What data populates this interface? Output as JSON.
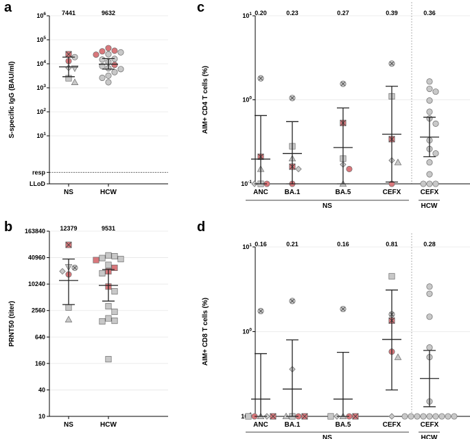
{
  "colors": {
    "gray": "#c8c8c8",
    "pink": "#d9777b",
    "stroke": "#6a6a6a"
  },
  "chart_data": [
    {
      "id": "a",
      "panel_label": "a",
      "type": "scatter",
      "scale": "log",
      "ylabel": "S-specific IgG (BAU/ml)",
      "ylim": [
        0.1,
        1000000
      ],
      "yticks": [
        {
          "value": 1000000,
          "label": "10",
          "exp": "6"
        },
        {
          "value": 100000,
          "label": "10",
          "exp": "5"
        },
        {
          "value": 10000,
          "label": "10",
          "exp": "4"
        },
        {
          "value": 1000,
          "label": "10",
          "exp": "3"
        },
        {
          "value": 100,
          "label": "10",
          "exp": "2"
        },
        {
          "value": 10,
          "label": "10",
          "exp": "1"
        },
        {
          "value": 0.3,
          "label": "resp",
          "exp": ""
        },
        {
          "value": 0.1,
          "label": "LLoD",
          "exp": ""
        }
      ],
      "hline": {
        "value": 0.3
      },
      "categories": [
        "NS",
        "HCW"
      ],
      "summary_labels": [
        "7441",
        "9632"
      ],
      "groups": [
        {
          "category": "NS",
          "center": 7441,
          "lower": 2900,
          "upper": 19000,
          "points": [
            {
              "v": 25000,
              "s": "sqx",
              "c": "pink"
            },
            {
              "v": 19000,
              "s": "circle",
              "c": "gray"
            },
            {
              "v": 13000,
              "s": "circle",
              "c": "pink"
            },
            {
              "v": 6500,
              "s": "tridown",
              "c": "gray"
            },
            {
              "v": 6800,
              "s": "diamond",
              "c": "gray"
            },
            {
              "v": 2500,
              "s": "square",
              "c": "gray"
            },
            {
              "v": 1700,
              "s": "triangle",
              "c": "gray"
            }
          ]
        },
        {
          "category": "HCW",
          "center": 9632,
          "lower": 6000,
          "upper": 16500,
          "points": [
            {
              "v": 45000,
              "s": "circle",
              "c": "pink"
            },
            {
              "v": 35000,
              "s": "circle",
              "c": "pink"
            },
            {
              "v": 33000,
              "s": "circle",
              "c": "pink"
            },
            {
              "v": 30000,
              "s": "circle",
              "c": "gray"
            },
            {
              "v": 25000,
              "s": "circle",
              "c": "gray"
            },
            {
              "v": 24000,
              "s": "circle",
              "c": "pink"
            },
            {
              "v": 16000,
              "s": "circle",
              "c": "gray"
            },
            {
              "v": 15000,
              "s": "circle",
              "c": "gray"
            },
            {
              "v": 12000,
              "s": "circle",
              "c": "gray"
            },
            {
              "v": 9000,
              "s": "circle",
              "c": "pink"
            },
            {
              "v": 8000,
              "s": "circle",
              "c": "gray"
            },
            {
              "v": 6500,
              "s": "circle",
              "c": "gray"
            },
            {
              "v": 6000,
              "s": "circle",
              "c": "gray"
            },
            {
              "v": 4500,
              "s": "circle",
              "c": "gray"
            },
            {
              "v": 3200,
              "s": "circle",
              "c": "gray"
            },
            {
              "v": 2600,
              "s": "circle",
              "c": "gray"
            },
            {
              "v": 1700,
              "s": "circle",
              "c": "gray"
            }
          ]
        }
      ]
    },
    {
      "id": "b",
      "panel_label": "b",
      "type": "scatter",
      "scale": "log",
      "ylabel": "PRNT50 (titer)",
      "ylim": [
        10,
        163840
      ],
      "yticks": [
        {
          "value": 163840,
          "label": "163840"
        },
        {
          "value": 40960,
          "label": "40960"
        },
        {
          "value": 10240,
          "label": "10240"
        },
        {
          "value": 2560,
          "label": "2560"
        },
        {
          "value": 640,
          "label": "640"
        },
        {
          "value": 160,
          "label": "160"
        },
        {
          "value": 40,
          "label": "40"
        },
        {
          "value": 10,
          "label": "10"
        }
      ],
      "categories": [
        "NS",
        "HCW"
      ],
      "summary_labels": [
        "12379",
        "9531"
      ],
      "groups": [
        {
          "category": "NS",
          "center": 12379,
          "lower": 3500,
          "upper": 38000,
          "points": [
            {
              "v": 80000,
              "s": "sqx",
              "c": "pink"
            },
            {
              "v": 25000,
              "s": "tridown",
              "c": "gray"
            },
            {
              "v": 24000,
              "s": "circx",
              "c": "gray"
            },
            {
              "v": 20000,
              "s": "diamond",
              "c": "gray"
            },
            {
              "v": 17000,
              "s": "circle",
              "c": "pink"
            },
            {
              "v": 3000,
              "s": "square",
              "c": "gray"
            },
            {
              "v": 1600,
              "s": "triangle",
              "c": "gray"
            }
          ]
        },
        {
          "category": "HCW",
          "center": 9531,
          "lower": 4200,
          "upper": 22000,
          "points": [
            {
              "v": 46000,
              "s": "square",
              "c": "gray"
            },
            {
              "v": 44000,
              "s": "square",
              "c": "gray"
            },
            {
              "v": 40000,
              "s": "square",
              "c": "gray"
            },
            {
              "v": 38000,
              "s": "square",
              "c": "gray"
            },
            {
              "v": 36000,
              "s": "square",
              "c": "pink"
            },
            {
              "v": 28000,
              "s": "square",
              "c": "gray"
            },
            {
              "v": 24000,
              "s": "square",
              "c": "pink"
            },
            {
              "v": 20000,
              "s": "square",
              "c": "pink"
            },
            {
              "v": 18000,
              "s": "square",
              "c": "gray"
            },
            {
              "v": 9000,
              "s": "square",
              "c": "pink"
            },
            {
              "v": 7000,
              "s": "square",
              "c": "gray"
            },
            {
              "v": 3200,
              "s": "square",
              "c": "gray"
            },
            {
              "v": 2400,
              "s": "square",
              "c": "gray"
            },
            {
              "v": 1700,
              "s": "square",
              "c": "gray"
            },
            {
              "v": 1500,
              "s": "square",
              "c": "gray"
            },
            {
              "v": 1450,
              "s": "square",
              "c": "gray"
            },
            {
              "v": 200,
              "s": "square",
              "c": "gray"
            }
          ]
        }
      ]
    },
    {
      "id": "c",
      "panel_label": "c",
      "type": "scatter",
      "scale": "log",
      "ylabel": "AIM+ CD4 T cells (%)",
      "ylim": [
        0.1,
        10
      ],
      "yticks": [
        {
          "value": 10,
          "label": "10",
          "exp": "1"
        },
        {
          "value": 1,
          "label": "10",
          "exp": "0"
        },
        {
          "value": 0.1,
          "label": "10",
          "exp": "-1"
        }
      ],
      "categories": [
        "ANC",
        "BA.1",
        "BA.5",
        "CEFX",
        "CEFX"
      ],
      "summary_labels": [
        "0.20",
        "0.23",
        "0.27",
        "0.39",
        "0.36"
      ],
      "bracket_labels": [
        "NS",
        "HCW"
      ],
      "groups": [
        {
          "category": "ANC",
          "center": 0.197,
          "lower": 0.1,
          "upper": 0.65,
          "points": [
            {
              "v": 1.8,
              "s": "circx",
              "c": "gray"
            },
            {
              "v": 0.21,
              "s": "sqx",
              "c": "pink"
            },
            {
              "v": 0.15,
              "s": "triangle",
              "c": "gray"
            },
            {
              "v": 0.1,
              "s": "square",
              "c": "gray"
            },
            {
              "v": 0.1,
              "s": "circle",
              "c": "pink"
            },
            {
              "v": 0.1,
              "s": "diamond",
              "c": "gray"
            }
          ]
        },
        {
          "category": "BA.1",
          "center": 0.23,
          "lower": 0.1,
          "upper": 0.55,
          "points": [
            {
              "v": 1.05,
              "s": "circx",
              "c": "gray"
            },
            {
              "v": 0.28,
              "s": "square",
              "c": "gray"
            },
            {
              "v": 0.2,
              "s": "triangle",
              "c": "gray"
            },
            {
              "v": 0.16,
              "s": "sqx",
              "c": "pink"
            },
            {
              "v": 0.15,
              "s": "diamond",
              "c": "gray"
            },
            {
              "v": 0.1,
              "s": "circle",
              "c": "pink"
            }
          ]
        },
        {
          "category": "BA.5",
          "center": 0.27,
          "lower": 0.1,
          "upper": 0.8,
          "points": [
            {
              "v": 1.55,
              "s": "circx",
              "c": "gray"
            },
            {
              "v": 0.53,
              "s": "sqx",
              "c": "pink"
            },
            {
              "v": 0.2,
              "s": "square",
              "c": "gray"
            },
            {
              "v": 0.17,
              "s": "diamond",
              "c": "gray"
            },
            {
              "v": 0.15,
              "s": "circle",
              "c": "pink"
            },
            {
              "v": 0.1,
              "s": "triangle",
              "c": "gray"
            }
          ]
        },
        {
          "category": "CEFX",
          "center": 0.39,
          "lower": 0.105,
          "upper": 1.45,
          "points": [
            {
              "v": 2.7,
              "s": "circx",
              "c": "gray"
            },
            {
              "v": 1.1,
              "s": "square",
              "c": "gray"
            },
            {
              "v": 0.34,
              "s": "sqx",
              "c": "pink"
            },
            {
              "v": 0.19,
              "s": "diamond",
              "c": "gray"
            },
            {
              "v": 0.18,
              "s": "triangle",
              "c": "gray"
            },
            {
              "v": 0.1,
              "s": "circle",
              "c": "pink"
            }
          ]
        },
        {
          "category": "CEFX",
          "center": 0.36,
          "lower": 0.21,
          "upper": 0.62,
          "points": [
            {
              "v": 1.65,
              "s": "circle",
              "c": "gray"
            },
            {
              "v": 1.35,
              "s": "circle",
              "c": "gray"
            },
            {
              "v": 1.25,
              "s": "circle",
              "c": "gray"
            },
            {
              "v": 0.98,
              "s": "circle",
              "c": "gray"
            },
            {
              "v": 0.72,
              "s": "circle",
              "c": "gray"
            },
            {
              "v": 0.6,
              "s": "circle",
              "c": "gray"
            },
            {
              "v": 0.52,
              "s": "circle",
              "c": "gray"
            },
            {
              "v": 0.33,
              "s": "circle",
              "c": "gray"
            },
            {
              "v": 0.26,
              "s": "circle",
              "c": "gray"
            },
            {
              "v": 0.23,
              "s": "circle",
              "c": "gray"
            },
            {
              "v": 0.18,
              "s": "circle",
              "c": "gray"
            },
            {
              "v": 0.13,
              "s": "circle",
              "c": "gray"
            },
            {
              "v": 0.1,
              "s": "circle",
              "c": "gray"
            },
            {
              "v": 0.1,
              "s": "circle",
              "c": "gray"
            },
            {
              "v": 0.1,
              "s": "circle",
              "c": "gray"
            }
          ]
        }
      ]
    },
    {
      "id": "d",
      "panel_label": "d",
      "type": "scatter",
      "scale": "log",
      "ylabel": "AIM+ CD8 T cells (%)",
      "ylim": [
        0.1,
        10
      ],
      "yticks": [
        {
          "value": 10,
          "label": "10",
          "exp": "1"
        },
        {
          "value": 1,
          "label": "10",
          "exp": "0"
        },
        {
          "value": 0.1,
          "label": "10",
          "exp": "-1"
        }
      ],
      "categories": [
        "ANC",
        "BA.1",
        "BA.5",
        "CEFX",
        "CEFX"
      ],
      "summary_labels": [
        "0.16",
        "0.21",
        "0.16",
        "0.81",
        "0.28"
      ],
      "bracket_labels": [
        "NS",
        "HCW"
      ],
      "groups": [
        {
          "category": "ANC",
          "center": 0.16,
          "lower": 0.1,
          "upper": 0.55,
          "points": [
            {
              "v": 1.75,
              "s": "circx",
              "c": "gray"
            },
            {
              "v": 0.1,
              "s": "triangle",
              "c": "gray"
            },
            {
              "v": 0.1,
              "s": "diamond",
              "c": "gray"
            },
            {
              "v": 0.1,
              "s": "circle",
              "c": "pink"
            },
            {
              "v": 0.1,
              "s": "sqx",
              "c": "pink"
            },
            {
              "v": 0.1,
              "s": "square",
              "c": "gray"
            }
          ]
        },
        {
          "category": "BA.1",
          "center": 0.21,
          "lower": 0.1,
          "upper": 0.8,
          "points": [
            {
              "v": 2.3,
              "s": "circx",
              "c": "gray"
            },
            {
              "v": 0.36,
              "s": "diamond",
              "c": "gray"
            },
            {
              "v": 0.1,
              "s": "square",
              "c": "gray"
            },
            {
              "v": 0.1,
              "s": "circle",
              "c": "pink"
            },
            {
              "v": 0.1,
              "s": "triangle",
              "c": "gray"
            },
            {
              "v": 0.1,
              "s": "sqx",
              "c": "pink"
            }
          ]
        },
        {
          "category": "BA.5",
          "center": 0.16,
          "lower": 0.1,
          "upper": 0.57,
          "points": [
            {
              "v": 1.85,
              "s": "circx",
              "c": "gray"
            },
            {
              "v": 0.1,
              "s": "triangle",
              "c": "gray"
            },
            {
              "v": 0.1,
              "s": "circle",
              "c": "pink"
            },
            {
              "v": 0.1,
              "s": "diamond",
              "c": "gray"
            },
            {
              "v": 0.1,
              "s": "sqx",
              "c": "pink"
            },
            {
              "v": 0.1,
              "s": "square",
              "c": "gray"
            }
          ]
        },
        {
          "category": "CEFX",
          "center": 0.81,
          "lower": 0.205,
          "upper": 3.1,
          "points": [
            {
              "v": 4.5,
              "s": "square",
              "c": "gray"
            },
            {
              "v": 1.6,
              "s": "circx",
              "c": "gray"
            },
            {
              "v": 1.35,
              "s": "sqx",
              "c": "pink"
            },
            {
              "v": 0.58,
              "s": "circle",
              "c": "pink"
            },
            {
              "v": 0.5,
              "s": "triangle",
              "c": "gray"
            },
            {
              "v": 0.1,
              "s": "diamond",
              "c": "gray"
            }
          ]
        },
        {
          "category": "CEFX",
          "center": 0.28,
          "lower": 0.13,
          "upper": 0.6,
          "points": [
            {
              "v": 3.4,
              "s": "circle",
              "c": "gray"
            },
            {
              "v": 2.8,
              "s": "circle",
              "c": "gray"
            },
            {
              "v": 1.5,
              "s": "circle",
              "c": "gray"
            },
            {
              "v": 0.65,
              "s": "circle",
              "c": "gray"
            },
            {
              "v": 0.5,
              "s": "circle",
              "c": "gray"
            },
            {
              "v": 0.15,
              "s": "circle",
              "c": "gray"
            },
            {
              "v": 0.1,
              "s": "circle",
              "c": "gray"
            },
            {
              "v": 0.1,
              "s": "circle",
              "c": "gray"
            },
            {
              "v": 0.1,
              "s": "circle",
              "c": "gray"
            },
            {
              "v": 0.1,
              "s": "circle",
              "c": "gray"
            },
            {
              "v": 0.1,
              "s": "circle",
              "c": "gray"
            },
            {
              "v": 0.1,
              "s": "circle",
              "c": "gray"
            },
            {
              "v": 0.1,
              "s": "circle",
              "c": "gray"
            },
            {
              "v": 0.1,
              "s": "circle",
              "c": "gray"
            },
            {
              "v": 0.1,
              "s": "circle",
              "c": "gray"
            }
          ]
        }
      ]
    }
  ]
}
